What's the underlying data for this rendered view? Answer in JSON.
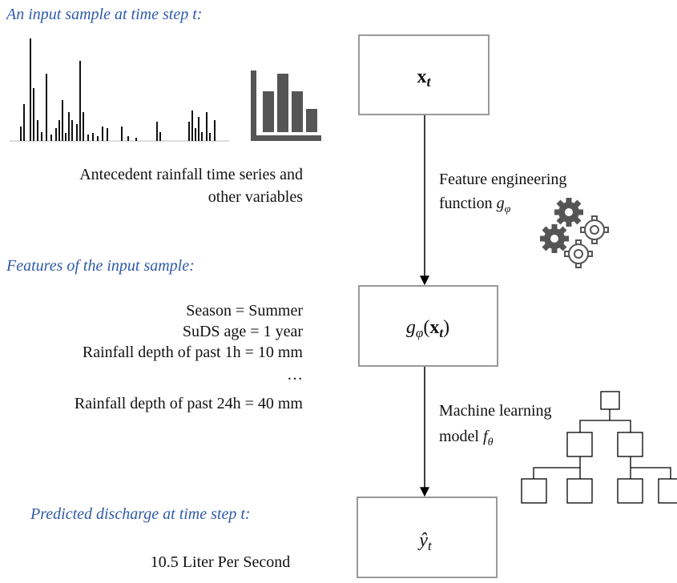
{
  "input": {
    "heading": "An input sample at time step t:",
    "description": [
      "Antecedent rainfall time series and",
      "other variables"
    ]
  },
  "features": {
    "heading": "Features of the input sample:",
    "lines": [
      "Season = Summer",
      "SuDS age = 1 year",
      "Rainfall depth of past 1h = 10 mm",
      "…",
      "Rainfall depth of past 24h = 40 mm"
    ]
  },
  "prediction": {
    "heading": "Predicted discharge at time step t:",
    "value": "10.5 Liter Per Second"
  },
  "nodes": [
    {
      "label": [
        "x",
        "t"
      ]
    },
    {
      "label": [
        "g",
        "φ",
        "(",
        "x",
        "t",
        ")"
      ]
    },
    {
      "label": [
        "ŷ",
        "t"
      ]
    }
  ],
  "edges": [
    {
      "label": [
        "Feature engineering",
        "function ",
        "g",
        "φ"
      ]
    },
    {
      "label": [
        "Machine learning",
        "model ",
        "f",
        "θ"
      ]
    }
  ]
}
